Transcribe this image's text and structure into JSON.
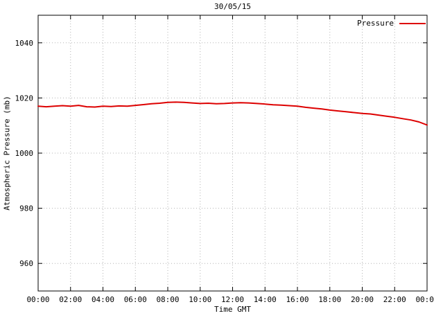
{
  "title": "30/05/15",
  "legend": {
    "label": "Pressure"
  },
  "axes": {
    "y_label": "Atmospheric Pressure (mb)",
    "x_label": "Time GMT"
  },
  "colors": {
    "line": "#dd0000",
    "grid": "#b3b3b3",
    "border": "#000000",
    "background": "#ffffff"
  },
  "chart_data": {
    "type": "line",
    "title": "30/05/15",
    "xlabel": "Time GMT",
    "ylabel": "Atmospheric Pressure (mb)",
    "xlim": [
      0,
      24
    ],
    "ylim": [
      950,
      1050
    ],
    "yticks": [
      960,
      980,
      1000,
      1020,
      1040
    ],
    "xtick_values": [
      0,
      2,
      4,
      6,
      8,
      10,
      12,
      14,
      16,
      18,
      20,
      22,
      24
    ],
    "xtick_labels": [
      "00:00",
      "02:00",
      "04:00",
      "06:00",
      "08:00",
      "10:00",
      "12:00",
      "14:00",
      "16:00",
      "18:00",
      "20:00",
      "22:00",
      "00:00"
    ],
    "grid": true,
    "legend_position": "top-right",
    "line_color": "#dd0000",
    "series": [
      {
        "name": "Pressure",
        "x": [
          0,
          0.5,
          1,
          1.5,
          2,
          2.5,
          3,
          3.5,
          4,
          4.5,
          5,
          5.5,
          6,
          6.5,
          7,
          7.5,
          8,
          8.5,
          9,
          9.5,
          10,
          10.5,
          11,
          11.5,
          12,
          12.5,
          13,
          13.5,
          14,
          14.5,
          15,
          15.5,
          16,
          16.5,
          17,
          17.5,
          18,
          18.5,
          19,
          19.5,
          20,
          20.5,
          21,
          21.5,
          22,
          22.5,
          23,
          23.5,
          24
        ],
        "values": [
          1017.0,
          1016.8,
          1017.0,
          1017.2,
          1017.0,
          1017.3,
          1016.8,
          1016.7,
          1017.0,
          1016.9,
          1017.1,
          1017.0,
          1017.3,
          1017.6,
          1017.9,
          1018.1,
          1018.4,
          1018.5,
          1018.4,
          1018.2,
          1018.0,
          1018.1,
          1017.9,
          1018.0,
          1018.2,
          1018.3,
          1018.2,
          1018.0,
          1017.8,
          1017.5,
          1017.4,
          1017.2,
          1017.0,
          1016.6,
          1016.3,
          1016.0,
          1015.6,
          1015.3,
          1015.0,
          1014.7,
          1014.4,
          1014.2,
          1013.8,
          1013.4,
          1013.0,
          1012.5,
          1012.0,
          1011.3,
          1010.2
        ]
      }
    ]
  }
}
